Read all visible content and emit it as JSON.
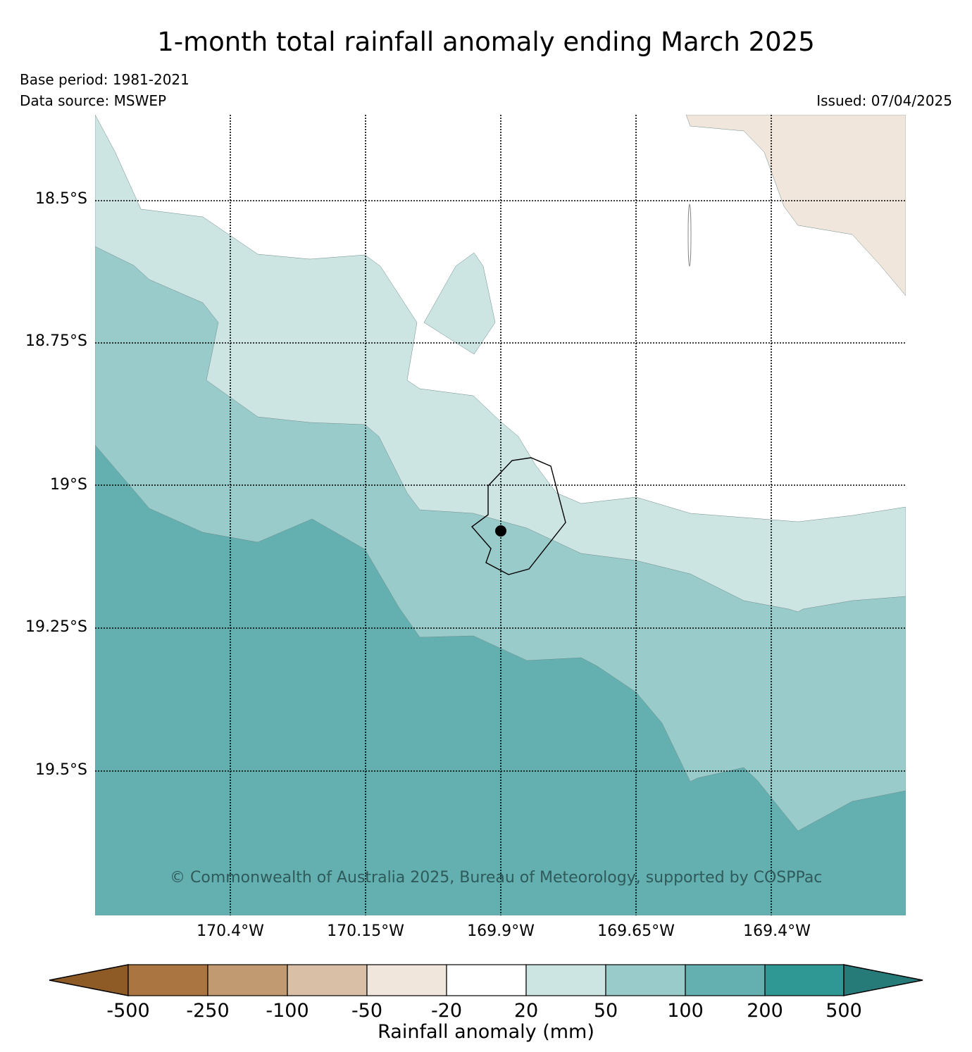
{
  "title": "1-month total rainfall anomaly ending March 2025",
  "meta": {
    "base_period": "Base period: 1981-2021",
    "data_source": "Data source: MSWEP",
    "issued": "Issued: 07/04/2025"
  },
  "map": {
    "lat_labels": [
      "18.5°S",
      "18.75°S",
      "19°S",
      "19.25°S",
      "19.5°S"
    ],
    "lon_labels": [
      "170.4°W",
      "170.15°W",
      "169.9°W",
      "169.65°W",
      "169.4°W"
    ],
    "copyright": "© Commonwealth of Australia 2025, Bureau of Meteorology, supported by COSPPac",
    "zone_colors": {
      "20_to_50": "#cce5e3",
      "50_to_100": "#9acbcb",
      "100_to_200": "#64b0b1",
      "-50_to_-20": "#f0e6dc",
      "land_outline": "#000000"
    }
  },
  "colorbar": {
    "title": "Rainfall anomaly (mm)",
    "ticks": [
      "-500",
      "-250",
      "-100",
      "-50",
      "-20",
      "20",
      "50",
      "100",
      "200",
      "500"
    ],
    "colors": [
      "#8e5a26",
      "#ab7541",
      "#c29a72",
      "#d9bfa6",
      "#f0e6dc",
      "#ffffff",
      "#cce5e3",
      "#9acbcb",
      "#64b0b1",
      "#2f9794",
      "#267a78"
    ]
  }
}
